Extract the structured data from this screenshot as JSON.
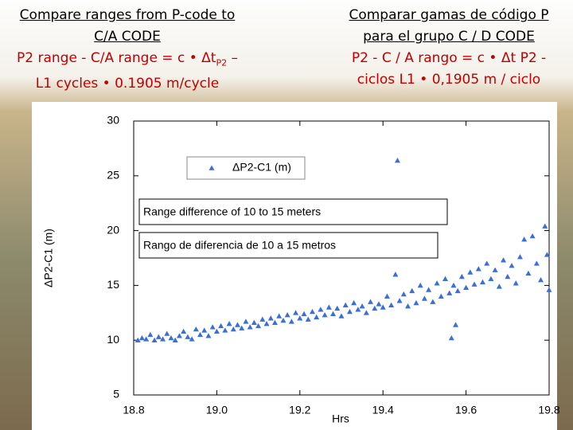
{
  "slide": {
    "left_title": [
      "Compare ranges from P-code to",
      "C/A CODE"
    ],
    "left_formula": {
      "line1": "P2 range - C/A range = c • Δt",
      "subscript": "P2",
      "line1_end": "–",
      "line2": "L1 cycles  • 0.1905 m/cycle"
    },
    "right_title": [
      "Comparar gamas de código P",
      "para el grupo C / D CODE"
    ],
    "right_formula": [
      "P2 - C / A rango = c • Δt P2 -",
      "ciclos L1 • 0,1905 m / ciclo"
    ]
  },
  "chart_data": {
    "type": "scatter",
    "xlabel": "Hrs",
    "ylabel": "ΔP2-C1 (m)",
    "xlim": [
      18.8,
      19.8
    ],
    "ylim": [
      5,
      30
    ],
    "xticks": [
      18.8,
      {
        "value": 19,
        "label": "19.0"
      },
      19.2,
      19.4,
      19.6,
      19.8
    ],
    "yticks": [
      5,
      10,
      15,
      20,
      25,
      30
    ],
    "grid": false,
    "annotations": [
      "Range difference of 10 to 15 meters",
      "Rango de diferencia de 10 a 15 metros"
    ],
    "x": [
      18.81,
      18.82,
      18.83,
      18.84,
      18.85,
      18.86,
      18.87,
      18.88,
      18.89,
      18.9,
      18.91,
      18.92,
      18.93,
      18.94,
      18.95,
      18.96,
      18.97,
      18.98,
      18.99,
      19.0,
      19.01,
      19.02,
      19.03,
      19.04,
      19.05,
      19.06,
      19.07,
      19.08,
      19.09,
      19.1,
      19.11,
      19.12,
      19.13,
      19.14,
      19.15,
      19.16,
      19.17,
      19.18,
      19.19,
      19.2,
      19.21,
      19.22,
      19.23,
      19.24,
      19.25,
      19.26,
      19.27,
      19.28,
      19.29,
      19.3,
      19.31,
      19.32,
      19.33,
      19.34,
      19.35,
      19.36,
      19.37,
      19.38,
      19.39,
      19.4,
      19.41,
      19.42,
      19.43,
      19.435,
      19.44,
      19.45,
      19.46,
      19.47,
      19.48,
      19.49,
      19.5,
      19.51,
      19.52,
      19.53,
      19.54,
      19.55,
      19.56,
      19.565,
      19.57,
      19.575,
      19.58,
      19.59,
      19.6,
      19.61,
      19.62,
      19.63,
      19.64,
      19.65,
      19.66,
      19.67,
      19.68,
      19.69,
      19.7,
      19.71,
      19.72,
      19.73,
      19.74,
      19.75,
      19.76,
      19.77,
      19.78,
      19.79,
      19.795,
      19.8
    ],
    "series": [
      {
        "name": "ΔP2-C1 (m)",
        "color": "#3a6fd8",
        "values": [
          10.0,
          10.2,
          10.1,
          10.5,
          10.0,
          10.3,
          10.1,
          10.6,
          10.2,
          10.0,
          10.4,
          10.8,
          10.3,
          10.1,
          11.0,
          10.5,
          10.9,
          10.4,
          11.2,
          10.8,
          11.3,
          10.9,
          11.5,
          11.0,
          11.4,
          11.1,
          11.7,
          11.2,
          11.6,
          11.3,
          11.9,
          11.5,
          12.0,
          11.6,
          12.2,
          11.8,
          12.3,
          11.7,
          12.5,
          12.0,
          12.4,
          11.9,
          12.6,
          12.1,
          12.8,
          12.3,
          13.0,
          12.4,
          12.9,
          12.2,
          13.2,
          12.6,
          13.4,
          12.8,
          13.1,
          12.5,
          13.5,
          12.9,
          13.3,
          13.0,
          14.0,
          13.2,
          16.0,
          26.4,
          13.6,
          14.2,
          13.1,
          14.5,
          13.4,
          15.0,
          13.8,
          14.6,
          13.5,
          15.2,
          14.0,
          15.6,
          14.3,
          10.2,
          15.0,
          11.4,
          14.5,
          15.8,
          14.8,
          16.2,
          15.1,
          16.5,
          15.3,
          17.0,
          15.6,
          16.4,
          14.9,
          17.3,
          15.8,
          16.8,
          15.2,
          17.6,
          19.2,
          16.1,
          19.5,
          17.0,
          15.5,
          20.4,
          17.8,
          14.6
        ]
      }
    ]
  }
}
